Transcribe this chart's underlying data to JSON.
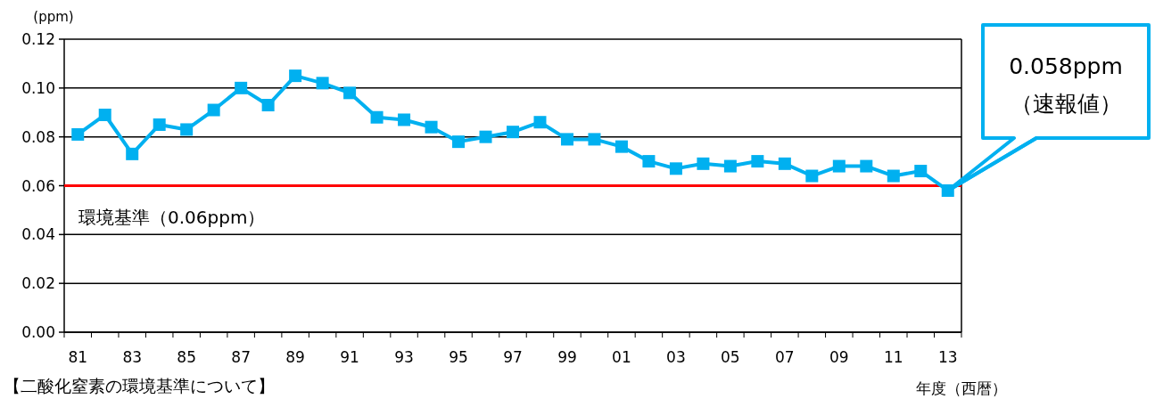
{
  "chart_data": {
    "type": "line",
    "ylabel": "(ppm)",
    "xlabel": "年度（西暦）",
    "categories": [
      "81",
      null,
      "83",
      null,
      "85",
      null,
      "87",
      null,
      "89",
      null,
      "91",
      null,
      "93",
      null,
      "95",
      null,
      "97",
      null,
      "99",
      null,
      "01",
      null,
      "03",
      null,
      "05",
      null,
      "07",
      null,
      "09",
      null,
      "11",
      null,
      "13"
    ],
    "series": [
      {
        "color": "#00b0f0",
        "values": [
          0.081,
          0.089,
          0.073,
          0.085,
          0.083,
          0.091,
          0.1,
          0.093,
          0.105,
          0.102,
          0.098,
          0.088,
          0.087,
          0.084,
          0.078,
          0.08,
          0.082,
          0.086,
          0.079,
          0.079,
          0.076,
          0.07,
          0.067,
          0.069,
          0.068,
          0.07,
          0.069,
          0.064,
          0.068,
          0.068,
          0.064,
          0.066,
          0.058
        ]
      }
    ],
    "ylim": [
      0,
      0.12
    ],
    "yticks": [
      {
        "value": 0,
        "label": "0.00"
      },
      {
        "value": 0.02,
        "label": "0.02"
      },
      {
        "value": 0.04,
        "label": "0.04"
      },
      {
        "value": 0.06,
        "label": "0.06"
      },
      {
        "value": 0.08,
        "label": "0.08"
      },
      {
        "value": 0.1,
        "label": "0.10"
      },
      {
        "value": 0.12,
        "label": "0.12"
      }
    ],
    "grid": "y",
    "marker": "square",
    "line_style": "solid",
    "ref_lines": [
      {
        "axis": "y",
        "value": 0.06,
        "label": "環境基準（0.06ppm）",
        "color": "#ff0000"
      }
    ],
    "annotations": [
      {
        "text": "0.058ppm\n（速報値）",
        "x": "13",
        "y": 0.058
      },
      "【二酸化窒素の環境基準について】"
    ]
  }
}
